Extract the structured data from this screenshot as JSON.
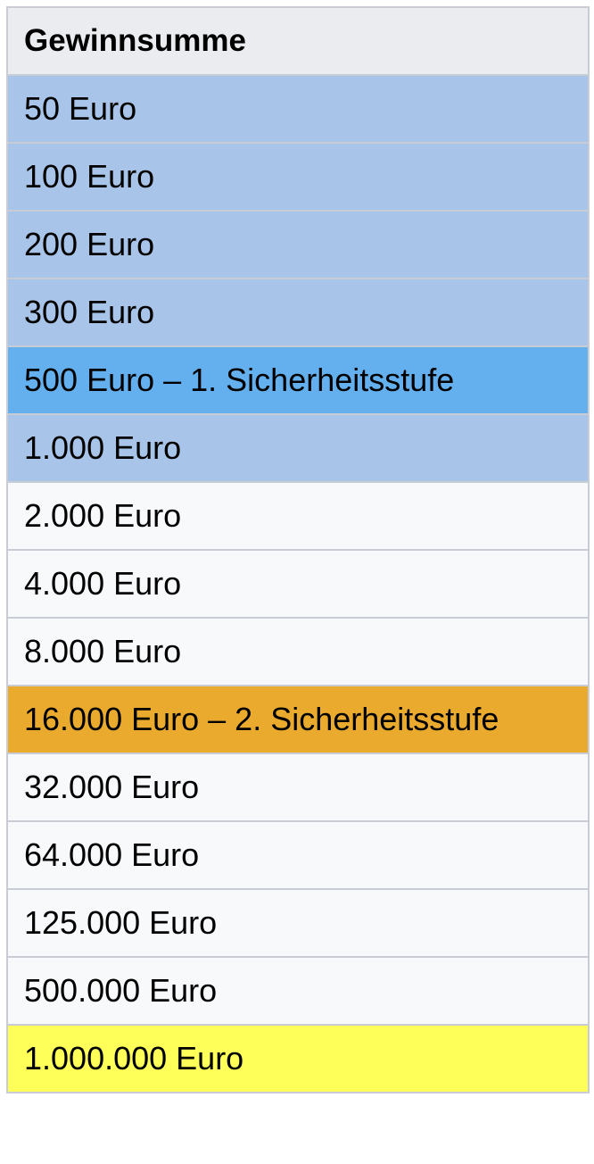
{
  "table": {
    "header": "Gewinnsumme",
    "header_color": "#eaecf0",
    "rows": [
      {
        "label": "50 Euro",
        "color": "#a8c4e8"
      },
      {
        "label": "100 Euro",
        "color": "#a8c4e8"
      },
      {
        "label": "200 Euro",
        "color": "#a8c4e8"
      },
      {
        "label": "300 Euro",
        "color": "#a8c4e8"
      },
      {
        "label": "500 Euro – 1. Sicherheitsstufe",
        "color": "#64b0ee"
      },
      {
        "label": "1.000 Euro",
        "color": "#a8c4e8"
      },
      {
        "label": "2.000 Euro",
        "color": "#f8f9fa"
      },
      {
        "label": "4.000 Euro",
        "color": "#f8f9fa"
      },
      {
        "label": "8.000 Euro",
        "color": "#f8f9fa"
      },
      {
        "label": "16.000 Euro – 2. Sicherheitsstufe",
        "color": "#eaaa2e"
      },
      {
        "label": "32.000 Euro",
        "color": "#f8f9fa"
      },
      {
        "label": "64.000 Euro",
        "color": "#f8f9fa"
      },
      {
        "label": "125.000 Euro",
        "color": "#f8f9fa"
      },
      {
        "label": "500.000 Euro",
        "color": "#f8f9fa"
      },
      {
        "label": "1.000.000 Euro",
        "color": "#ffff5a"
      }
    ]
  }
}
